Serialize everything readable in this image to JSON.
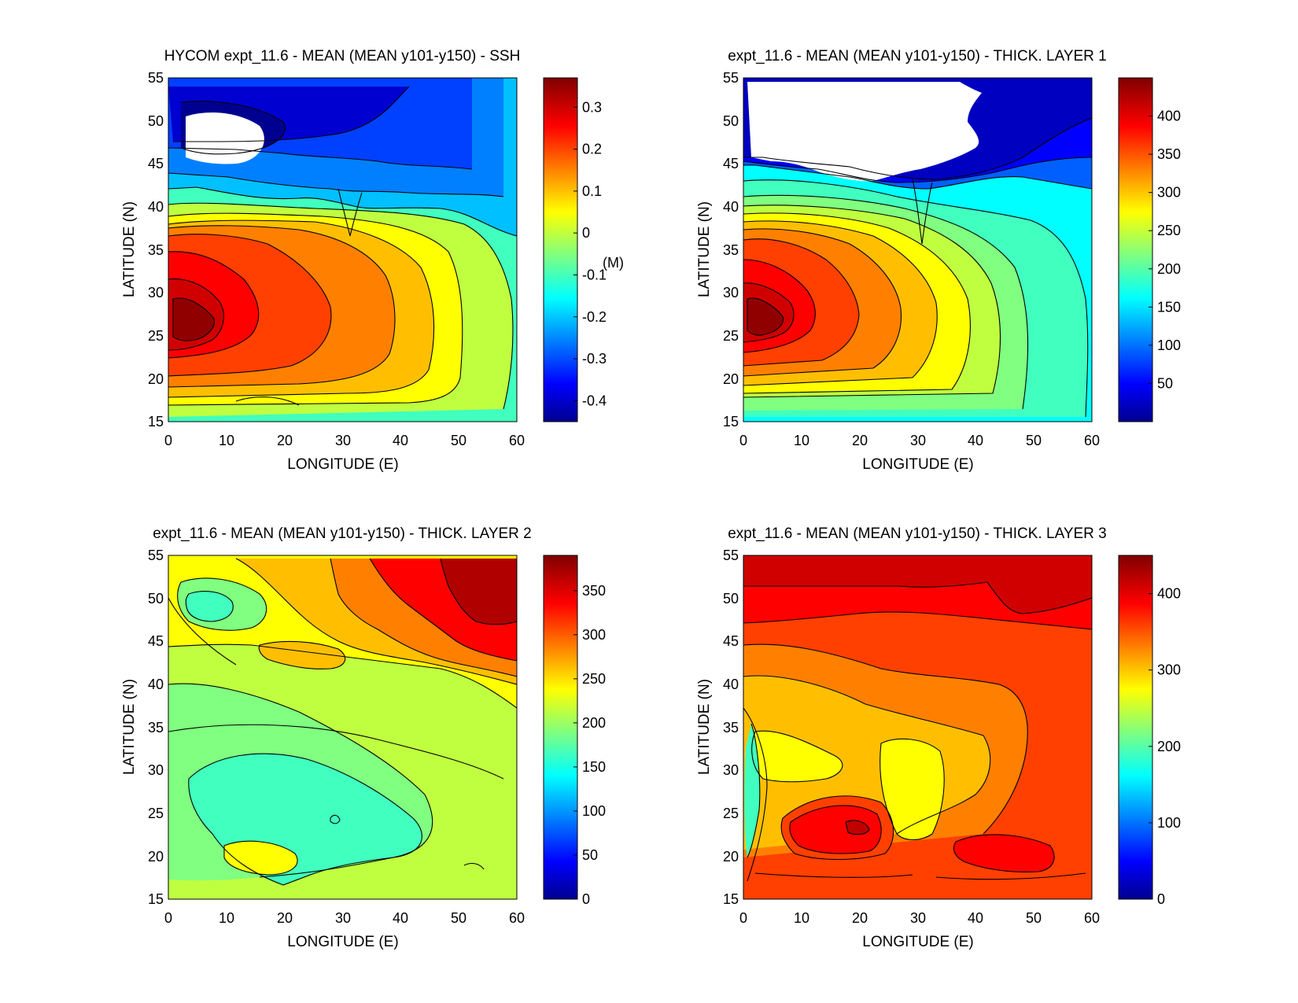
{
  "chart_data": [
    {
      "type": "contourf",
      "title": "HYCOM expt_11.6 - MEAN (MEAN y101-y150) - SSH",
      "xlabel": "LONGITUDE (E)",
      "ylabel": "LATITUDE (N)",
      "xlim": [
        0,
        60
      ],
      "ylim": [
        15,
        55
      ],
      "xticks": [
        "0",
        "10",
        "20",
        "30",
        "40",
        "50",
        "60"
      ],
      "yticks": [
        "15",
        "20",
        "25",
        "30",
        "35",
        "40",
        "45",
        "50",
        "55"
      ],
      "colorbar": {
        "range": [
          -0.45,
          0.37
        ],
        "ticks": [
          -0.4,
          -0.3,
          -0.2,
          -0.1,
          0,
          0.1,
          0.2,
          0.3
        ],
        "tick_labels": [
          "-0.4",
          "-0.3",
          "-0.2",
          "-0.1",
          "0",
          "0.1",
          "0.2",
          "0.3"
        ],
        "unit_label": "(M)"
      }
    },
    {
      "type": "contourf",
      "title": "expt_11.6 - MEAN (MEAN y101-y150) - THICK. LAYER 1",
      "xlabel": "LONGITUDE (E)",
      "ylabel": "LATITUDE (N)",
      "xlim": [
        0,
        60
      ],
      "ylim": [
        15,
        55
      ],
      "xticks": [
        "0",
        "10",
        "20",
        "30",
        "40",
        "50",
        "60"
      ],
      "yticks": [
        "15",
        "20",
        "25",
        "30",
        "35",
        "40",
        "45",
        "50",
        "55"
      ],
      "colorbar": {
        "range": [
          0,
          450
        ],
        "ticks": [
          50,
          100,
          150,
          200,
          250,
          300,
          350,
          400
        ],
        "tick_labels": [
          "50",
          "100",
          "150",
          "200",
          "250",
          "300",
          "350",
          "400"
        ],
        "unit_label": ""
      }
    },
    {
      "type": "contourf",
      "title": "expt_11.6 - MEAN (MEAN y101-y150) - THICK. LAYER 2",
      "xlabel": "LONGITUDE (E)",
      "ylabel": "LATITUDE (N)",
      "xlim": [
        0,
        60
      ],
      "ylim": [
        15,
        55
      ],
      "xticks": [
        "0",
        "10",
        "20",
        "30",
        "40",
        "50",
        "60"
      ],
      "yticks": [
        "15",
        "20",
        "25",
        "30",
        "35",
        "40",
        "45",
        "50",
        "55"
      ],
      "colorbar": {
        "range": [
          0,
          390
        ],
        "ticks": [
          0,
          50,
          100,
          150,
          200,
          250,
          300,
          350
        ],
        "tick_labels": [
          "0",
          "50",
          "100",
          "150",
          "200",
          "250",
          "300",
          "350"
        ],
        "unit_label": ""
      }
    },
    {
      "type": "contourf",
      "title": "expt_11.6 - MEAN (MEAN y101-y150) - THICK. LAYER 3",
      "xlabel": "LONGITUDE (E)",
      "ylabel": "LATITUDE (N)",
      "xlim": [
        0,
        60
      ],
      "ylim": [
        15,
        55
      ],
      "xticks": [
        "0",
        "10",
        "20",
        "30",
        "40",
        "50",
        "60"
      ],
      "yticks": [
        "15",
        "20",
        "25",
        "30",
        "35",
        "40",
        "45",
        "50",
        "55"
      ],
      "colorbar": {
        "range": [
          0,
          450
        ],
        "ticks": [
          0,
          100,
          200,
          300,
          400
        ],
        "tick_labels": [
          "0",
          "100",
          "200",
          "300",
          "400"
        ],
        "unit_label": ""
      }
    }
  ]
}
